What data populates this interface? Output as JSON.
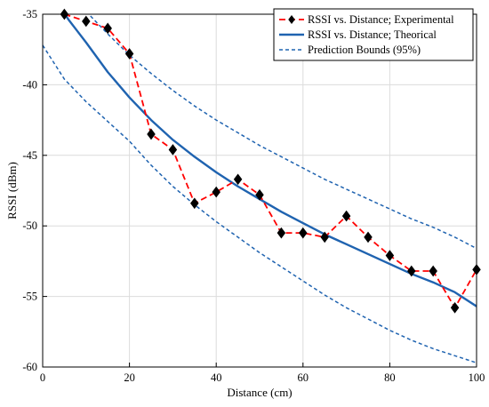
{
  "chart_data": {
    "type": "line",
    "title": "",
    "xlabel": "Distance (cm)",
    "ylabel": "RSSI (dBm)",
    "xlim": [
      0,
      100
    ],
    "ylim": [
      -60,
      -35
    ],
    "xticks": [
      0,
      20,
      40,
      60,
      80,
      100
    ],
    "yticks": [
      -35,
      -40,
      -45,
      -50,
      -55,
      -60
    ],
    "grid": true,
    "legend_position": "top-right",
    "series": [
      {
        "name": "RSSI vs. Distance; Experimental",
        "style": "dashed-with-diamond-markers",
        "color": "#ff0000",
        "marker_color": "#000000",
        "x": [
          5,
          10,
          15,
          20,
          25,
          30,
          35,
          40,
          45,
          50,
          55,
          60,
          65,
          70,
          75,
          80,
          85,
          90,
          95,
          100
        ],
        "y": [
          -35.0,
          -35.5,
          -36.0,
          -37.8,
          -43.5,
          -44.6,
          -48.4,
          -47.6,
          -46.7,
          -47.8,
          -50.5,
          -50.5,
          -50.8,
          -49.3,
          -50.8,
          -52.1,
          -53.2,
          -53.2,
          -55.8,
          -53.1
        ]
      },
      {
        "name": "RSSI vs. Distance; Theorical",
        "style": "solid",
        "color": "#1f63b0",
        "x": [
          4,
          6,
          8,
          10,
          15,
          20,
          25,
          30,
          35,
          40,
          45,
          50,
          55,
          60,
          65,
          70,
          75,
          80,
          85,
          90,
          95,
          100
        ],
        "y": [
          -34.5,
          -35.4,
          -36.2,
          -37.0,
          -39.1,
          -40.9,
          -42.5,
          -43.9,
          -45.1,
          -46.2,
          -47.2,
          -48.1,
          -49.0,
          -49.8,
          -50.6,
          -51.3,
          -52.0,
          -52.7,
          -53.4,
          -54.0,
          -54.7,
          -55.7
        ]
      },
      {
        "name": "Prediction Bounds (95%)",
        "style": "dotted",
        "color": "#1f63b0",
        "x": [
          9,
          10,
          15,
          20,
          25,
          30,
          35,
          40,
          45,
          50,
          55,
          60,
          65,
          70,
          75,
          80,
          85,
          90,
          95,
          100
        ],
        "y": [
          -34.5,
          -34.8,
          -36.4,
          -37.9,
          -39.2,
          -40.4,
          -41.5,
          -42.5,
          -43.4,
          -44.3,
          -45.1,
          -45.9,
          -46.7,
          -47.4,
          -48.1,
          -48.8,
          -49.5,
          -50.1,
          -50.8,
          -51.6
        ]
      },
      {
        "name": "",
        "style": "dotted",
        "color": "#1f63b0",
        "x": [
          0,
          5,
          10,
          15,
          20,
          25,
          30,
          35,
          40,
          45,
          50,
          55,
          60,
          65,
          70,
          75,
          80,
          85,
          90,
          95,
          100
        ],
        "y": [
          -37.2,
          -39.6,
          -41.2,
          -42.6,
          -44.0,
          -45.7,
          -47.2,
          -48.5,
          -49.7,
          -50.8,
          -51.9,
          -52.9,
          -53.9,
          -54.9,
          -55.8,
          -56.6,
          -57.4,
          -58.1,
          -58.7,
          -59.2,
          -59.7
        ]
      }
    ]
  }
}
